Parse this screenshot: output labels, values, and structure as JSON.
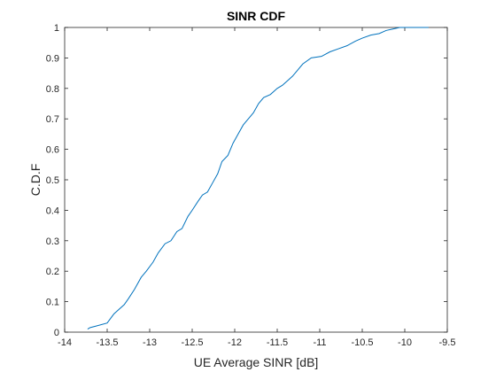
{
  "chart_data": {
    "type": "line",
    "title": "SINR CDF",
    "xlabel": "UE Average SINR [dB]",
    "ylabel": "C.D.F",
    "xlim": [
      -14,
      -9.5
    ],
    "ylim": [
      0,
      1
    ],
    "xticks": [
      -14,
      -13.5,
      -13,
      -12.5,
      -12,
      -11.5,
      -11,
      -10.5,
      -10,
      -9.5
    ],
    "xtick_labels": [
      "-14",
      "-13.5",
      "-13",
      "-12.5",
      "-12",
      "-11.5",
      "-11",
      "-10.5",
      "-10",
      "-9.5"
    ],
    "yticks": [
      0,
      0.1,
      0.2,
      0.3,
      0.4,
      0.5,
      0.6,
      0.7,
      0.8,
      0.9,
      1
    ],
    "ytick_labels": [
      "0",
      "0.1",
      "0.2",
      "0.3",
      "0.4",
      "0.5",
      "0.6",
      "0.7",
      "0.8",
      "0.9",
      "1"
    ],
    "grid": false,
    "box": true,
    "series": [
      {
        "color": "#0072BD",
        "x": [
          -13.73,
          -13.7,
          -13.63,
          -13.5,
          -13.42,
          -13.38,
          -13.3,
          -13.25,
          -13.18,
          -13.1,
          -13.04,
          -12.96,
          -12.9,
          -12.82,
          -12.75,
          -12.68,
          -12.62,
          -12.55,
          -12.5,
          -12.43,
          -12.38,
          -12.32,
          -12.26,
          -12.2,
          -12.15,
          -12.08,
          -12.02,
          -11.96,
          -11.9,
          -11.84,
          -11.78,
          -11.72,
          -11.66,
          -11.58,
          -11.5,
          -11.44,
          -11.38,
          -11.32,
          -11.26,
          -11.2,
          -11.1,
          -10.98,
          -10.88,
          -10.78,
          -10.68,
          -10.58,
          -10.5,
          -10.4,
          -10.3,
          -10.22,
          -10.14,
          -10.06,
          -10.0,
          -9.9,
          -9.72
        ],
        "y": [
          0.01,
          0.015,
          0.02,
          0.03,
          0.06,
          0.07,
          0.09,
          0.11,
          0.14,
          0.18,
          0.2,
          0.23,
          0.26,
          0.29,
          0.3,
          0.33,
          0.34,
          0.38,
          0.4,
          0.43,
          0.45,
          0.46,
          0.49,
          0.52,
          0.56,
          0.58,
          0.62,
          0.65,
          0.68,
          0.7,
          0.72,
          0.75,
          0.77,
          0.78,
          0.8,
          0.81,
          0.825,
          0.84,
          0.86,
          0.88,
          0.9,
          0.905,
          0.92,
          0.93,
          0.94,
          0.955,
          0.965,
          0.975,
          0.98,
          0.99,
          0.995,
          1.0,
          1.0,
          1.0,
          1.0
        ]
      }
    ]
  }
}
